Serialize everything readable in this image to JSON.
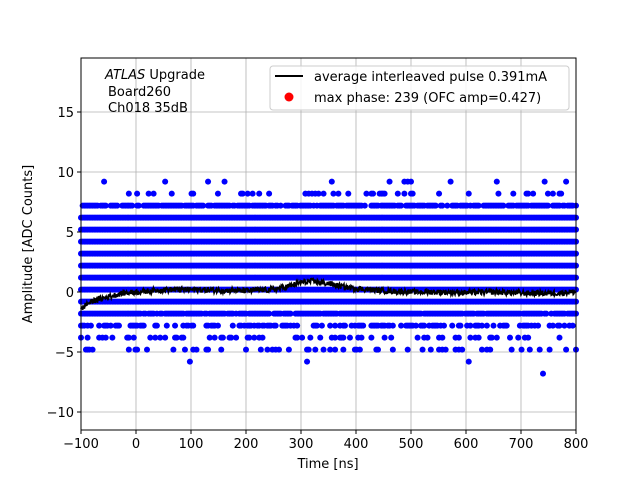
{
  "chart_data": {
    "type": "scatter",
    "xlabel": "Time [ns]",
    "ylabel": "Amplitude [ADC Counts]",
    "xlim": [
      -100,
      800
    ],
    "ylim": [
      -11.5,
      19.5
    ],
    "xticks": [
      "-100",
      "0",
      "100",
      "200",
      "300",
      "400",
      "500",
      "600",
      "700",
      "800"
    ],
    "yticks": [
      "-10",
      "-5",
      "0",
      "5",
      "10",
      "15"
    ],
    "grid": true,
    "legend_position": "top-right",
    "annotation": {
      "italic": "ATLAS",
      "rest": " Upgrade",
      "line2": "Board260",
      "line3": "Ch018 35dB"
    },
    "series": [
      {
        "name": "average interleaved pulse 0.391mA",
        "type": "line",
        "color": "#000000",
        "x": [
          -100,
          -90,
          -75,
          -50,
          -25,
          0,
          25,
          50,
          100,
          150,
          200,
          250,
          280,
          300,
          320,
          350,
          380,
          400,
          450,
          500,
          550,
          600,
          650,
          700,
          750,
          800
        ],
        "y": [
          -1.5,
          -1.0,
          -0.7,
          -0.4,
          -0.1,
          0.0,
          0.1,
          0.2,
          0.2,
          0.15,
          0.1,
          0.2,
          0.5,
          0.8,
          0.9,
          0.7,
          0.4,
          0.3,
          0.1,
          0.0,
          0.0,
          -0.05,
          0.0,
          -0.1,
          -0.1,
          0.0
        ]
      },
      {
        "name": "max phase: 239 (OFC amp=0.427)",
        "type": "scatter",
        "color": "#ff0000"
      },
      {
        "type": "scatter",
        "color": "#0000ff",
        "levels": [
          10.2,
          9.2,
          8.2,
          7.2,
          6.2,
          5.2,
          4.2,
          3.2,
          2.2,
          1.2,
          0.2,
          -0.8,
          -1.8,
          -2.8,
          -3.8,
          -4.8,
          -5.8,
          -6.8
        ],
        "occupancy": [
          0.003,
          0.03,
          0.12,
          0.8,
          1,
          1,
          1,
          1,
          1,
          1,
          1,
          1,
          0.9,
          0.45,
          0.2,
          0.15,
          0.01,
          0.003
        ]
      }
    ]
  }
}
